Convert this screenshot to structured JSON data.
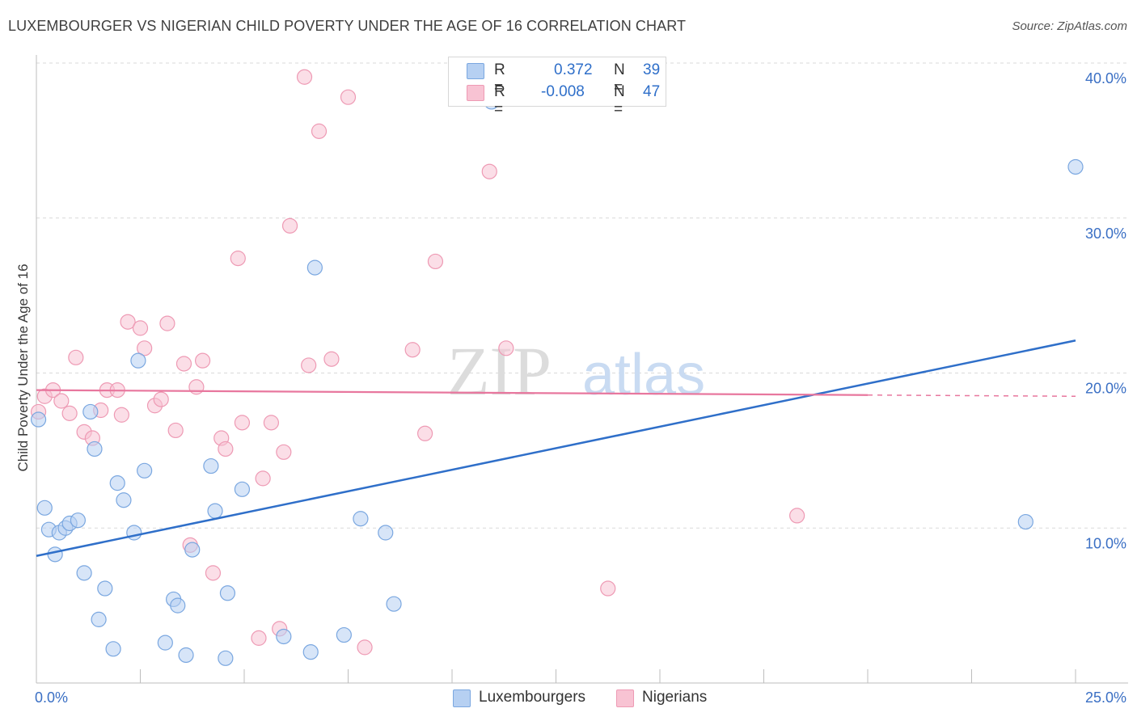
{
  "title": "LUXEMBOURGER VS NIGERIAN CHILD POVERTY UNDER THE AGE OF 16 CORRELATION CHART",
  "source": "Source: ZipAtlas.com",
  "watermark": {
    "zip": "ZIP",
    "atlas": "atlas"
  },
  "legend": {
    "r_label": "R =",
    "n_label": "N =",
    "series": [
      {
        "name": "Luxembourgers",
        "r": "0.372",
        "n": "39"
      },
      {
        "name": "Nigerians",
        "r": "-0.008",
        "n": "47"
      }
    ]
  },
  "colors": {
    "lux_fill": "#b6d0f2",
    "lux_stroke": "#7aa7e0",
    "lux_line": "#2f6fc9",
    "nig_fill": "#f8c3d3",
    "nig_stroke": "#ee9ab4",
    "nig_line": "#e8779e"
  },
  "chart_data": {
    "type": "scatter",
    "title": "LUXEMBOURGER VS NIGERIAN CHILD POVERTY UNDER THE AGE OF 16 CORRELATION CHART",
    "xlabel": "",
    "ylabel": "Child Poverty Under the Age of 16",
    "xlim": [
      0,
      25
    ],
    "ylim": [
      0,
      40
    ],
    "x_tick_labels": [
      "0.0%",
      "25.0%"
    ],
    "y_ticks": [
      10,
      20,
      30,
      40
    ],
    "y_tick_labels": [
      "10.0%",
      "20.0%",
      "30.0%",
      "40.0%"
    ],
    "grid": true,
    "series": [
      {
        "name": "Luxembourgers",
        "points": [
          [
            0.05,
            17.0
          ],
          [
            0.2,
            11.3
          ],
          [
            0.3,
            9.9
          ],
          [
            0.45,
            8.3
          ],
          [
            0.55,
            9.7
          ],
          [
            0.7,
            10.0
          ],
          [
            0.8,
            10.3
          ],
          [
            1.0,
            10.5
          ],
          [
            1.15,
            7.1
          ],
          [
            1.3,
            17.5
          ],
          [
            1.4,
            15.1
          ],
          [
            1.5,
            4.1
          ],
          [
            1.65,
            6.1
          ],
          [
            1.85,
            2.2
          ],
          [
            1.95,
            12.9
          ],
          [
            2.1,
            11.8
          ],
          [
            2.35,
            9.7
          ],
          [
            2.45,
            20.8
          ],
          [
            2.6,
            13.7
          ],
          [
            3.1,
            2.6
          ],
          [
            3.3,
            5.4
          ],
          [
            3.4,
            5.0
          ],
          [
            3.6,
            1.8
          ],
          [
            3.75,
            8.6
          ],
          [
            4.2,
            14.0
          ],
          [
            4.3,
            11.1
          ],
          [
            4.55,
            1.6
          ],
          [
            4.6,
            5.8
          ],
          [
            4.95,
            12.5
          ],
          [
            5.95,
            3.0
          ],
          [
            6.6,
            2.0
          ],
          [
            6.7,
            26.8
          ],
          [
            7.4,
            3.1
          ],
          [
            7.8,
            10.6
          ],
          [
            8.4,
            9.7
          ],
          [
            8.6,
            5.1
          ],
          [
            10.95,
            37.5
          ],
          [
            23.8,
            10.4
          ],
          [
            25.0,
            33.3
          ]
        ]
      },
      {
        "name": "Nigerians",
        "points": [
          [
            0.05,
            17.5
          ],
          [
            0.2,
            18.5
          ],
          [
            0.4,
            18.9
          ],
          [
            0.6,
            18.2
          ],
          [
            0.8,
            17.4
          ],
          [
            0.95,
            21.0
          ],
          [
            1.15,
            16.2
          ],
          [
            1.35,
            15.8
          ],
          [
            1.55,
            17.6
          ],
          [
            1.7,
            18.9
          ],
          [
            1.95,
            18.9
          ],
          [
            2.05,
            17.3
          ],
          [
            2.2,
            23.3
          ],
          [
            2.5,
            22.9
          ],
          [
            2.6,
            21.6
          ],
          [
            2.85,
            17.9
          ],
          [
            3.0,
            18.3
          ],
          [
            3.15,
            23.2
          ],
          [
            3.35,
            16.3
          ],
          [
            3.55,
            20.6
          ],
          [
            3.7,
            8.9
          ],
          [
            3.85,
            19.1
          ],
          [
            4.0,
            20.8
          ],
          [
            4.25,
            7.1
          ],
          [
            4.45,
            15.8
          ],
          [
            4.55,
            15.1
          ],
          [
            4.85,
            27.4
          ],
          [
            4.95,
            16.8
          ],
          [
            5.35,
            2.9
          ],
          [
            5.45,
            13.2
          ],
          [
            5.65,
            16.8
          ],
          [
            5.85,
            3.5
          ],
          [
            5.95,
            14.9
          ],
          [
            6.1,
            29.5
          ],
          [
            6.45,
            39.1
          ],
          [
            6.55,
            20.5
          ],
          [
            6.8,
            35.6
          ],
          [
            7.1,
            20.9
          ],
          [
            7.5,
            37.8
          ],
          [
            7.9,
            2.3
          ],
          [
            9.05,
            21.5
          ],
          [
            9.35,
            16.1
          ],
          [
            9.6,
            27.2
          ],
          [
            10.9,
            33.0
          ],
          [
            11.3,
            21.6
          ],
          [
            13.75,
            6.1
          ],
          [
            18.3,
            10.8
          ]
        ]
      }
    ],
    "trend_lines": [
      {
        "name": "Luxembourgers",
        "x": [
          0,
          25
        ],
        "y": [
          8.2,
          22.1
        ]
      },
      {
        "name": "Nigerians",
        "x": [
          0,
          25
        ],
        "y": [
          18.9,
          18.5
        ],
        "solid_until_x": 20
      }
    ]
  }
}
